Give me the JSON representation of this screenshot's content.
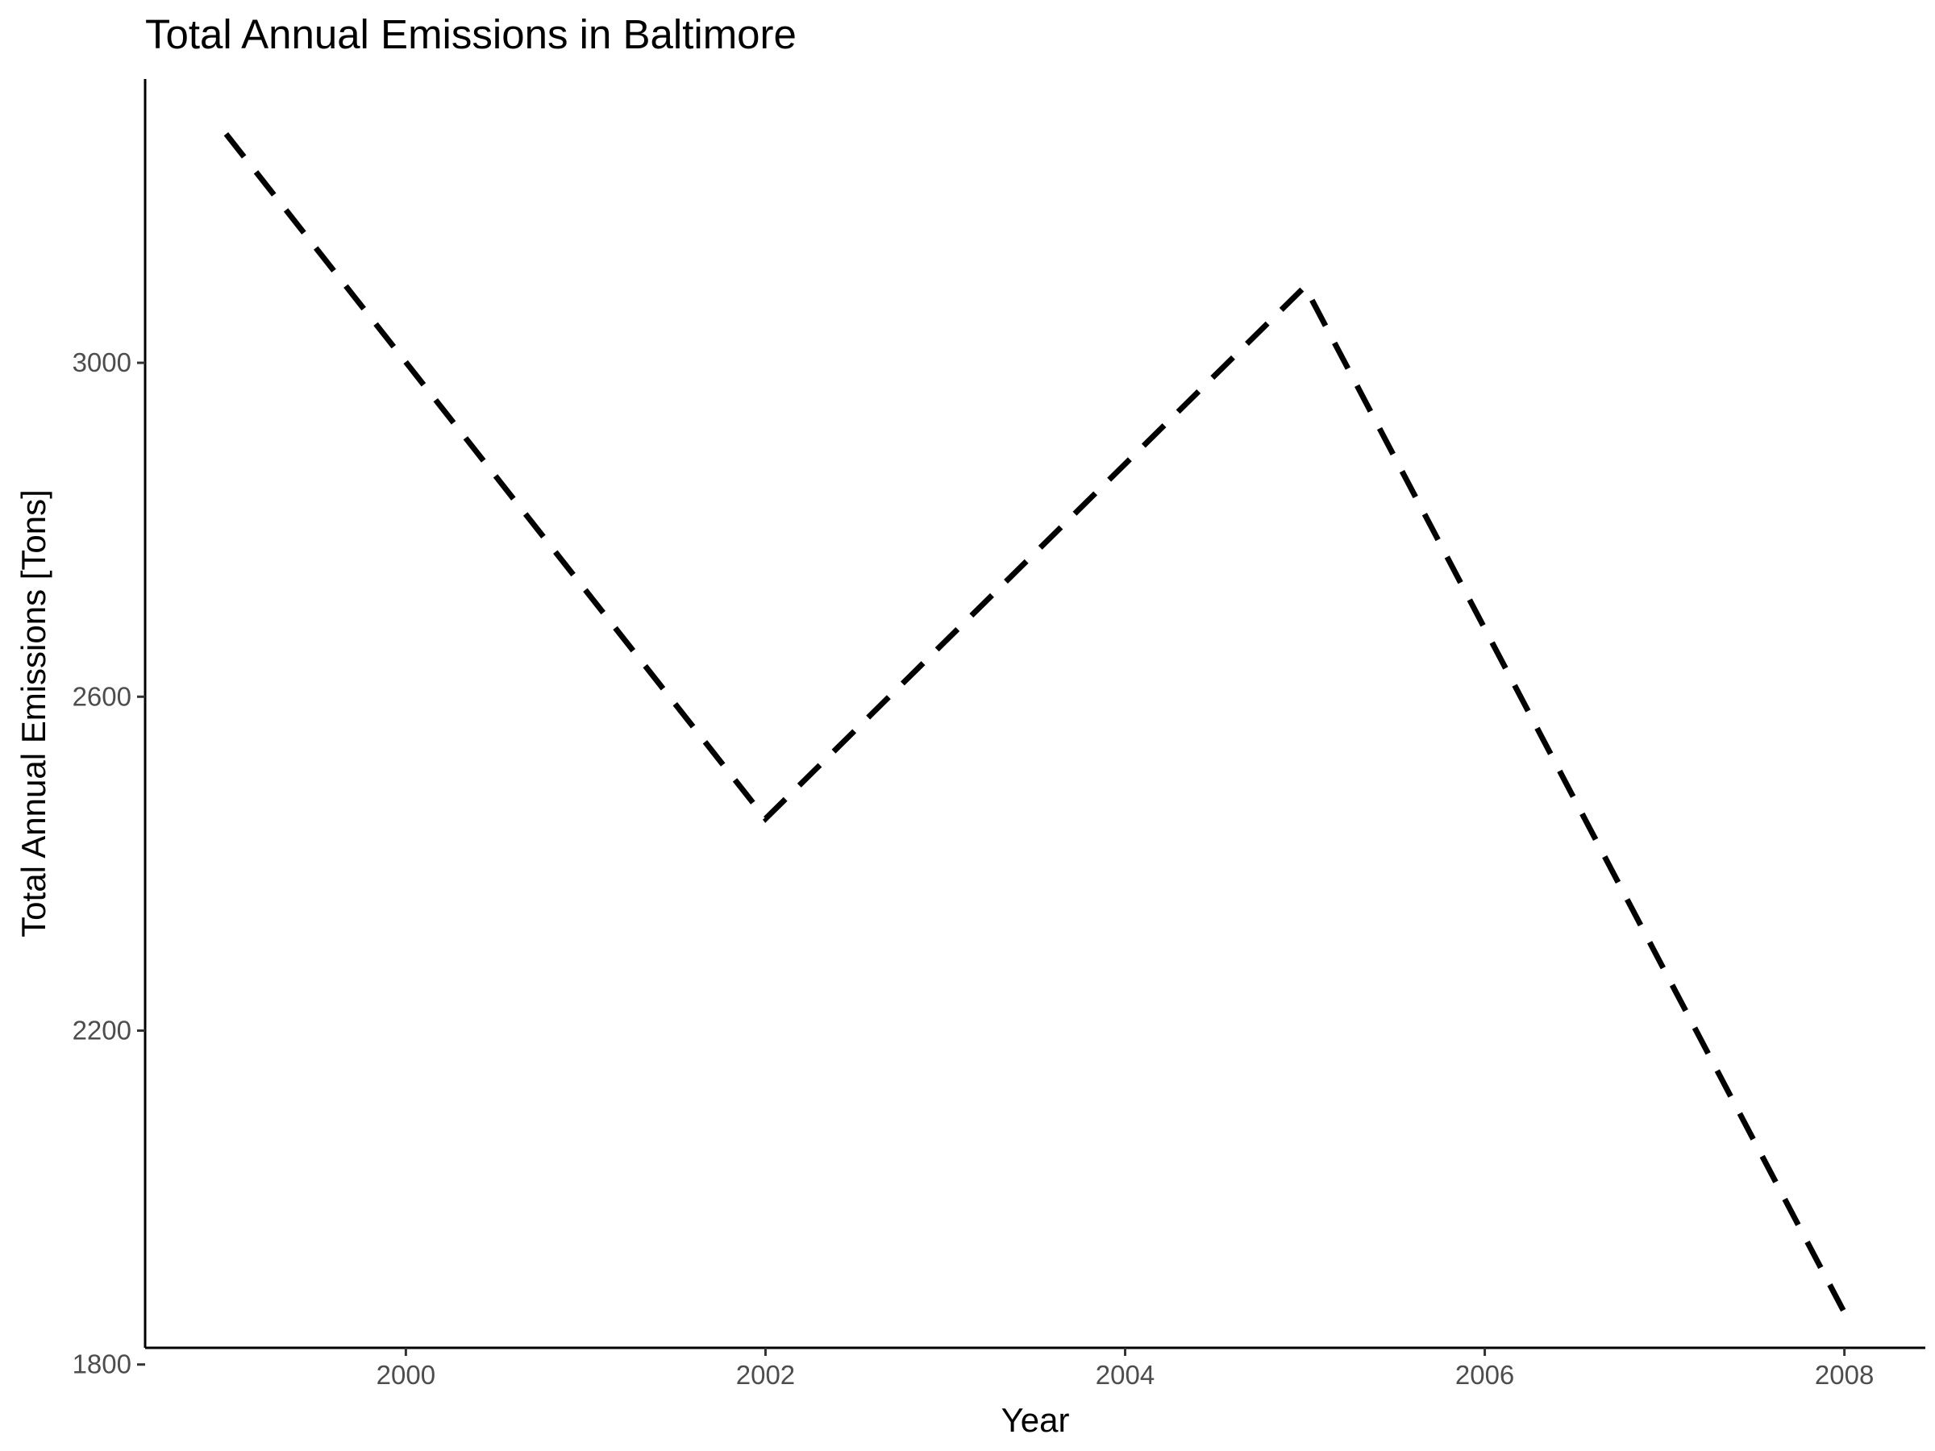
{
  "chart_data": {
    "type": "line",
    "title": "Total Annual Emissions in Baltimore",
    "xlabel": "Year",
    "ylabel": "Total Annual Emissions [Tons]",
    "x": [
      1999,
      2002,
      2005,
      2008
    ],
    "series": [
      {
        "values": [
          3274.18,
          2453.92,
          3091.35,
          1862.28
        ]
      }
    ],
    "xlim": [
      1998.55,
      2008.45
    ],
    "ylim": [
      1820,
      3340
    ],
    "xticks": [
      2000,
      2002,
      2004,
      2006,
      2008
    ],
    "xtick_labels": [
      "2000",
      "2002",
      "2004",
      "2006",
      "2008"
    ],
    "yticks": [
      1800,
      2200,
      2600,
      3000
    ],
    "ytick_labels": [
      "1800",
      "2200",
      "2600",
      "3000"
    ],
    "line_style": "dashed",
    "line_color": "#000000",
    "grid": false,
    "legend": "none"
  }
}
